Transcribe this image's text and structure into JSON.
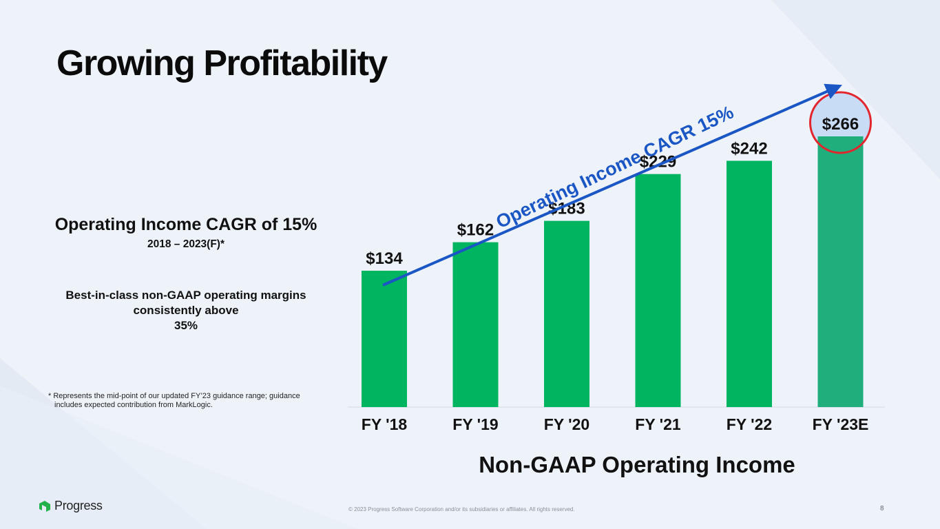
{
  "slide": {
    "title": "Growing Profitability",
    "kpi_heading": "Operating Income CAGR of 15%",
    "kpi_period": "2018 – 2023(F)*",
    "margin_line1": "Best-in-class non-GAAP operating margins",
    "margin_line2": "consistently above",
    "margin_line3": "35%",
    "footnote_line1": "* Represents the mid-point of our updated FY’23 guidance range; guidance",
    "footnote_line2": "includes expected contribution from MarkLogic.",
    "logo_text": "Progress",
    "copyright": "© 2023 Progress Software Corporation and/or its subsidiaries or affiliates. All rights reserved.",
    "page_number": "8"
  },
  "colors": {
    "bar": "#00b460",
    "bar_highlight": "#1fae7c",
    "trend_arrow": "#1a56c4",
    "highlight_circle": "#e3262d",
    "highlight_fill": "#c9dcf6",
    "logo_green": "#25b14a"
  },
  "chart_data": {
    "type": "bar",
    "title": "Non-GAAP Operating Income",
    "categories": [
      "FY '18",
      "FY '19",
      "FY '20",
      "FY '21",
      "FY '22",
      "FY '23E"
    ],
    "values": [
      134,
      162,
      183,
      229,
      242,
      266
    ],
    "data_labels": [
      "$134",
      "$162",
      "$183",
      "$229",
      "$242",
      "$266"
    ],
    "ylim": [
      0,
      266
    ],
    "grid": false,
    "highlight_index": 5,
    "trend_annotation": "Operating Income CAGR 15%"
  }
}
